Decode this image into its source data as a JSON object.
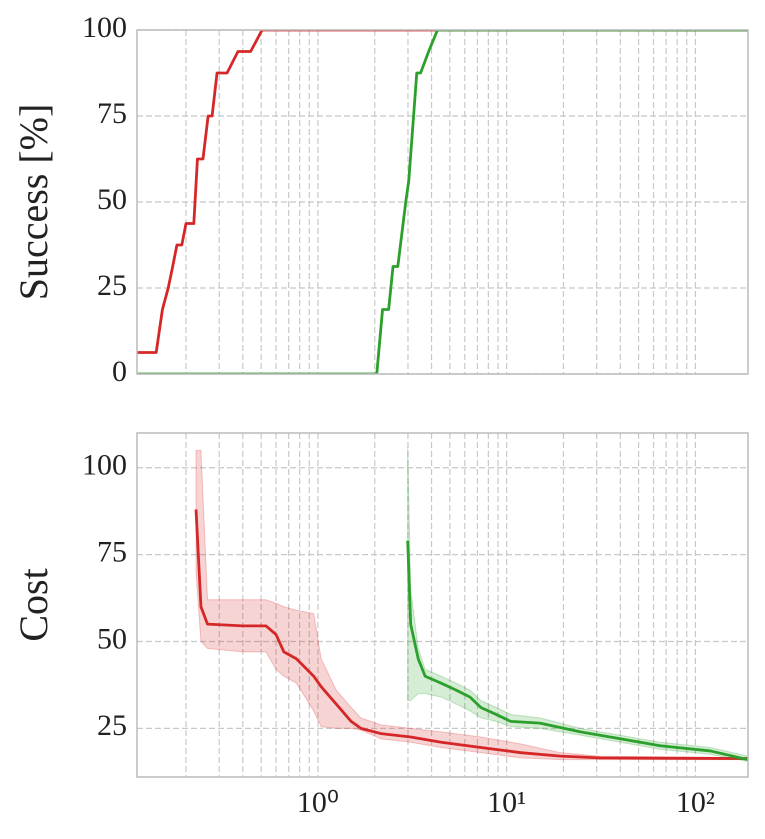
{
  "chart_data": [
    {
      "type": "line",
      "ylabel": "Success [%]",
      "xscale": "log",
      "grid": true,
      "xlim": [
        0.11,
        190
      ],
      "xticks": [
        1,
        10,
        100
      ],
      "ylim": [
        0,
        100
      ],
      "yticks": [
        0,
        25,
        50,
        75,
        100
      ],
      "series": [
        {
          "color": "#d62728",
          "x": [
            0.11,
            0.139,
            0.15,
            0.161,
            0.17,
            0.179,
            0.19,
            0.2,
            0.22,
            0.23,
            0.246,
            0.262,
            0.275,
            0.292,
            0.33,
            0.377,
            0.44,
            0.506,
            190
          ],
          "values": [
            6.25,
            6.25,
            18.75,
            25,
            31.25,
            37.5,
            37.5,
            43.75,
            43.75,
            62.5,
            62.5,
            75,
            75,
            87.5,
            87.5,
            93.75,
            93.75,
            100,
            100
          ]
        },
        {
          "color": "#2ca02c",
          "x": [
            0.11,
            2.05,
            2.2,
            2.37,
            2.5,
            2.65,
            2.92,
            3.03,
            3.34,
            3.5,
            3.86,
            4.3,
            190
          ],
          "values": [
            0,
            0,
            18.75,
            18.75,
            31.25,
            31.25,
            50,
            56.25,
            87.5,
            87.5,
            93.75,
            100,
            100
          ]
        }
      ]
    },
    {
      "type": "line",
      "ylabel": "Cost",
      "xscale": "log",
      "grid": true,
      "xlim": [
        0.11,
        190
      ],
      "xticks": [
        {
          "value": 1,
          "label": "10⁰"
        },
        {
          "value": 10,
          "label": "10¹"
        },
        {
          "value": 100,
          "label": "10²"
        }
      ],
      "ylim": [
        11,
        110
      ],
      "yticks": [
        25,
        50,
        75,
        100
      ],
      "series": [
        {
          "color": "#d62728",
          "x": [
            0.226,
            0.24,
            0.26,
            0.4,
            0.53,
            0.6,
            0.66,
            0.77,
            0.95,
            1.04,
            1.25,
            1.5,
            1.69,
            2.15,
            3.1,
            4.5,
            7.3,
            11.9,
            19.3,
            31,
            190
          ],
          "values": [
            88,
            60,
            55,
            54.5,
            54.5,
            52,
            47,
            45,
            40,
            37,
            32,
            27,
            25,
            23.5,
            22.5,
            21,
            19.5,
            18,
            17,
            16.5,
            16.3
          ],
          "upper": [
            105,
            105,
            62,
            62,
            62,
            61,
            60,
            59,
            58,
            45,
            36,
            31,
            28,
            26,
            25,
            24,
            22.5,
            20.5,
            18,
            17,
            16.5
          ],
          "lower": [
            70,
            50,
            48,
            47,
            47,
            42,
            40,
            38,
            30,
            25.5,
            25,
            25,
            24.5,
            22,
            21,
            19.5,
            18,
            16.5,
            16,
            16,
            16
          ]
        },
        {
          "color": "#2ca02c",
          "x": [
            2.99,
            3.1,
            3.4,
            3.7,
            4.5,
            5.4,
            6.4,
            7.3,
            8.8,
            10.5,
            15,
            24.6,
            40,
            65,
            120,
            190
          ],
          "values": [
            79,
            55,
            45,
            40,
            38,
            36,
            34,
            31,
            29,
            27,
            26.5,
            24,
            22,
            20,
            18.5,
            16
          ],
          "upper": [
            106,
            65,
            48,
            42,
            40,
            38,
            36,
            33,
            31,
            29,
            28,
            25,
            23,
            21,
            19.5,
            17
          ],
          "lower": [
            33,
            33,
            35,
            35,
            34,
            32,
            30,
            28,
            27,
            25.5,
            25,
            23,
            21,
            19,
            17.5,
            15.5
          ]
        }
      ]
    }
  ]
}
